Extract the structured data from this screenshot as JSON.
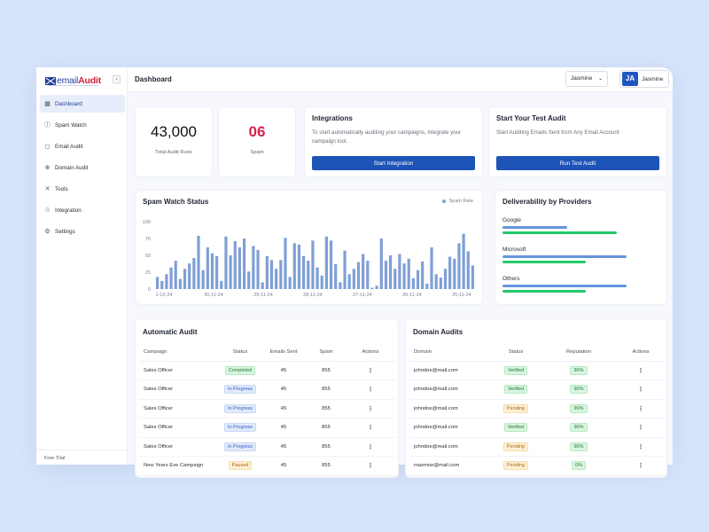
{
  "app": {
    "logo_prefix": "email",
    "logo_suffix": "Audit"
  },
  "sidebar": {
    "collapse_icon": "chevron-left-icon",
    "items": [
      {
        "label": "Dashboard",
        "icon": "grid-icon",
        "glyph": "▦",
        "active": true
      },
      {
        "label": "Spam Watch",
        "icon": "alert-circle-icon",
        "glyph": "ⓘ",
        "active": false
      },
      {
        "label": "Email Audit",
        "icon": "chat-bubble-icon",
        "glyph": "◻",
        "active": false
      },
      {
        "label": "Domain Audit",
        "icon": "globe-icon",
        "glyph": "⊕",
        "active": false
      },
      {
        "label": "Tools",
        "icon": "tools-icon",
        "glyph": "✕",
        "active": false
      },
      {
        "label": "Integration",
        "icon": "integration-icon",
        "glyph": "♲",
        "active": false
      },
      {
        "label": "Settings",
        "icon": "gear-icon",
        "glyph": "⚙",
        "active": false
      }
    ],
    "footer": "Free Trial"
  },
  "header": {
    "title": "Dashboard",
    "user_select": "Jasmine",
    "avatar_initials": "JA",
    "user_name": "Jasmine"
  },
  "stats": {
    "total_audit_runs": {
      "value": "43,000",
      "label": "Total Audit Runs"
    },
    "spam": {
      "value": "06",
      "label": "Spam"
    }
  },
  "integrations": {
    "title": "Integrations",
    "description": "To start automatically auditing your campaigns, integrate your campaign tool.",
    "button": "Start Integration"
  },
  "test_audit": {
    "title": "Start Your Test Audit",
    "description": "Start Auditing Emails Sent from Any Email Account",
    "button": "Run Test Audit"
  },
  "chart_data": {
    "type": "bar",
    "title": "Spam Watch Status",
    "legend": [
      "Spam Rate"
    ],
    "legend_position": "top-right",
    "color": "#7f9fd6",
    "ylim": [
      0,
      100
    ],
    "yticks": [
      0,
      25,
      50,
      75,
      100
    ],
    "x_ticks": [
      "1-12-24",
      "30-11-24",
      "29-11-24",
      "28-11-24",
      "27-11-24",
      "26-11-24",
      "25-11-24"
    ],
    "grid": false,
    "series": [
      {
        "values": [
          18,
          12,
          22,
          32,
          42,
          15,
          30,
          38,
          46,
          79,
          28,
          62,
          53,
          49,
          12,
          78,
          50,
          71,
          62,
          75,
          26,
          64,
          58,
          10,
          49,
          43,
          30,
          43,
          76,
          18,
          68,
          66,
          49,
          42,
          72,
          32,
          20,
          78,
          72,
          37,
          10,
          57,
          22,
          30,
          40,
          52,
          42,
          2,
          5,
          75,
          42,
          50,
          30,
          52,
          38,
          45,
          16,
          28,
          41,
          8,
          62,
          22,
          17,
          30,
          48,
          45,
          68,
          82,
          56,
          35
        ]
      }
    ]
  },
  "deliverability": {
    "title": "Deliverability by Providers",
    "colors": {
      "bar_a": "#6594e0",
      "bar_b": "#22c96b"
    },
    "providers": [
      {
        "name": "Google",
        "a": 0.48,
        "b": 0.85
      },
      {
        "name": "Microsoft",
        "a": 0.92,
        "b": 0.62
      },
      {
        "name": "Others",
        "a": 0.92,
        "b": 0.62
      }
    ]
  },
  "automatic_audit": {
    "title": "Automatic Audit",
    "columns": [
      "Campaign",
      "Status",
      "Emails Sent",
      "Spam",
      "Actions"
    ],
    "rows": [
      {
        "campaign": "Sales Officer",
        "status": "Completed",
        "status_type": "completed",
        "sent": "45",
        "spam": "855"
      },
      {
        "campaign": "Sales Officer",
        "status": "In Progress",
        "status_type": "progress",
        "sent": "45",
        "spam": "855"
      },
      {
        "campaign": "Sales Officer",
        "status": "In Progress",
        "status_type": "progress",
        "sent": "45",
        "spam": "855"
      },
      {
        "campaign": "Sales Officer",
        "status": "In Progress",
        "status_type": "progress",
        "sent": "45",
        "spam": "855"
      },
      {
        "campaign": "Sales Officer",
        "status": "In Progress",
        "status_type": "progress",
        "sent": "45",
        "spam": "855"
      },
      {
        "campaign": "New Years Eve Campaign",
        "status": "Paused",
        "status_type": "paused",
        "sent": "45",
        "spam": "855"
      }
    ]
  },
  "domain_audits": {
    "title": "Domain Audits",
    "columns": [
      "Domain",
      "Status",
      "Reputation",
      "Actions"
    ],
    "rows": [
      {
        "domain": "johndoe@mail.com",
        "status": "Verified",
        "status_type": "verified",
        "rep": "90%"
      },
      {
        "domain": "johndoe@mail.com",
        "status": "Verified",
        "status_type": "verified",
        "rep": "90%"
      },
      {
        "domain": "johndoe@mail.com",
        "status": "Pending",
        "status_type": "pending",
        "rep": "90%"
      },
      {
        "domain": "johndoe@mail.com",
        "status": "Verified",
        "status_type": "verified",
        "rep": "90%"
      },
      {
        "domain": "johndoe@mail.com",
        "status": "Pending",
        "status_type": "pending",
        "rep": "90%"
      },
      {
        "domain": "maxmoe@mail.com",
        "status": "Pending",
        "status_type": "pending",
        "rep": "0%"
      }
    ]
  },
  "actions_glyph": "⋮"
}
